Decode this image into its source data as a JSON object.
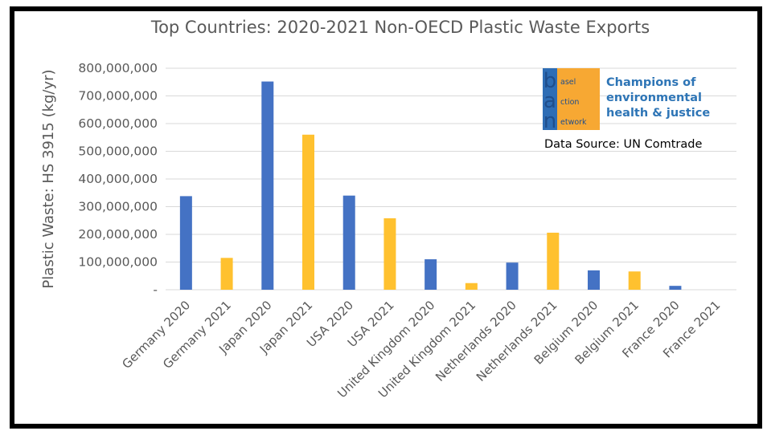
{
  "chart_data": {
    "type": "bar",
    "title": "Top Countries: 2020-2021 Non-OECD Plastic Waste Exports",
    "ylabel": "Plastic Waste: HS 3915 (kg/yr)",
    "xlabel": "",
    "ylim": [
      0,
      800000000
    ],
    "yticks": [
      "-",
      "100,000,000",
      "200,000,000",
      "300,000,000",
      "400,000,000",
      "500,000,000",
      "600,000,000",
      "700,000,000",
      "800,000,000"
    ],
    "grid": true,
    "categories": [
      "Germany 2020",
      "Germany 2021",
      "Japan 2020",
      "Japan 2021",
      "USA 2020",
      "USA 2021",
      "United Kingdom 2020",
      "United Kingdom 2021",
      "Netherlands 2020",
      "Netherlands 2021",
      "Belgium 2020",
      "Belgium 2021",
      "France 2020",
      "France 2021"
    ],
    "values": [
      338000000,
      115000000,
      752000000,
      560000000,
      340000000,
      258000000,
      110000000,
      24000000,
      98000000,
      206000000,
      70000000,
      66000000,
      14000000,
      0
    ],
    "bar_colors": [
      "#4472c4",
      "#ffc12f",
      "#4472c4",
      "#ffc12f",
      "#4472c4",
      "#ffc12f",
      "#4472c4",
      "#ffc12f",
      "#4472c4",
      "#ffc12f",
      "#4472c4",
      "#ffc12f",
      "#4472c4",
      "#ffc12f"
    ]
  },
  "logo": {
    "letters": [
      "b",
      "a",
      "n"
    ],
    "words": [
      "asel",
      "ction",
      "etwork"
    ],
    "tagline": [
      "Champions of",
      "environmental",
      "health & justice"
    ],
    "colors": {
      "orange": "#f7a833",
      "blue": "#1f4e8c",
      "tagline": "#2e75b6"
    }
  },
  "source_note": "Data Source: UN Comtrade"
}
